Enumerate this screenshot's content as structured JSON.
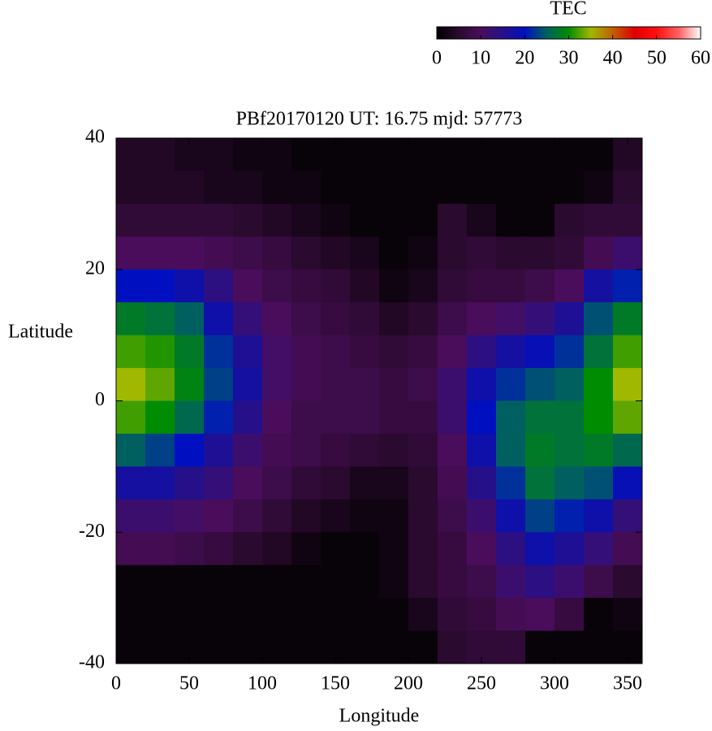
{
  "chart_data": {
    "type": "heatmap",
    "title": "PBf20170120  UT: 16.75  mjd: 57773",
    "x_label": "Longitude",
    "y_label": "Latitude",
    "colorbar_label": "TEC",
    "x": [
      10,
      30,
      50,
      70,
      90,
      110,
      130,
      150,
      170,
      190,
      210,
      230,
      250,
      270,
      290,
      310,
      330,
      350
    ],
    "y": [
      37.5,
      32.5,
      27.5,
      22.5,
      17.5,
      12.5,
      7.5,
      2.5,
      -2.5,
      -7.5,
      -12.5,
      -17.5,
      -22.5,
      -27.5,
      -32.5,
      -37.5
    ],
    "z": [
      [
        4,
        4,
        3,
        3,
        2,
        2,
        1,
        1,
        1,
        1,
        1,
        1,
        1,
        1,
        1,
        1,
        1,
        4
      ],
      [
        4,
        4,
        4,
        3,
        3,
        2,
        2,
        1,
        1,
        1,
        1,
        1,
        1,
        1,
        1,
        1,
        2,
        5
      ],
      [
        6,
        6,
        6,
        6,
        5,
        4,
        3,
        2,
        1,
        1,
        1,
        5,
        3,
        1,
        1,
        5,
        6,
        6
      ],
      [
        10,
        10,
        10,
        9,
        8,
        7,
        5,
        4,
        3,
        1,
        2,
        5,
        6,
        5,
        5,
        6,
        9,
        12
      ],
      [
        20,
        20,
        18,
        14,
        10,
        8,
        7,
        6,
        4,
        2,
        3,
        6,
        7,
        7,
        8,
        10,
        17,
        21
      ],
      [
        28,
        27,
        25,
        18,
        13,
        10,
        8,
        7,
        6,
        4,
        5,
        8,
        10,
        11,
        13,
        16,
        24,
        28
      ],
      [
        32,
        31,
        28,
        22,
        16,
        11,
        9,
        8,
        7,
        6,
        7,
        10,
        14,
        17,
        19,
        22,
        27,
        32
      ],
      [
        35,
        33,
        29,
        23,
        17,
        11,
        9,
        8,
        8,
        7,
        8,
        12,
        18,
        22,
        24,
        25,
        30,
        35
      ],
      [
        32,
        30,
        26,
        21,
        15,
        10,
        8,
        8,
        8,
        7,
        7,
        12,
        20,
        25,
        27,
        27,
        30,
        33
      ],
      [
        25,
        23,
        20,
        16,
        12,
        9,
        8,
        7,
        6,
        5,
        6,
        10,
        18,
        25,
        28,
        27,
        28,
        26
      ],
      [
        17,
        17,
        15,
        13,
        10,
        8,
        6,
        5,
        3,
        3,
        5,
        9,
        15,
        22,
        27,
        25,
        24,
        19
      ],
      [
        12,
        12,
        11,
        10,
        8,
        6,
        4,
        3,
        2,
        2,
        5,
        8,
        12,
        18,
        23,
        21,
        18,
        13
      ],
      [
        9,
        9,
        8,
        7,
        5,
        4,
        2,
        1,
        1,
        2,
        5,
        7,
        10,
        14,
        18,
        16,
        13,
        9
      ],
      [
        1,
        1,
        1,
        1,
        1,
        1,
        1,
        1,
        1,
        2,
        5,
        7,
        8,
        12,
        14,
        12,
        8,
        5
      ],
      [
        1,
        1,
        1,
        1,
        1,
        1,
        1,
        1,
        1,
        1,
        3,
        6,
        7,
        9,
        10,
        7,
        1,
        2
      ],
      [
        1,
        1,
        1,
        1,
        1,
        1,
        1,
        1,
        1,
        1,
        1,
        5,
        6,
        6,
        1,
        1,
        1,
        1
      ]
    ],
    "xlim": [
      0,
      360
    ],
    "xticks": [
      0,
      50,
      100,
      150,
      200,
      250,
      300,
      350
    ],
    "ylim": [
      -40,
      40
    ],
    "yticks": [
      -40,
      -20,
      0,
      20,
      40
    ],
    "zlim": [
      0,
      60
    ],
    "zticks": [
      0,
      10,
      20,
      30,
      40,
      50,
      60
    ],
    "palette": [
      "#000000",
      "#2a0a2e",
      "#4a0d5c",
      "#25108a",
      "#0010c0",
      "#006060",
      "#008c00",
      "#a0b800",
      "#c06000",
      "#e00000",
      "#ff1010",
      "#ff6060",
      "#ffffff"
    ]
  }
}
